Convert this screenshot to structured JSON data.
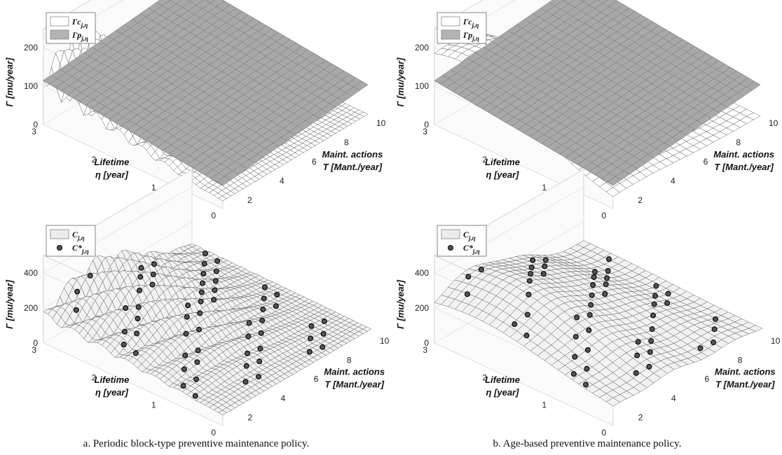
{
  "chart_data": [
    {
      "type": "surface",
      "panel": "a-top",
      "zlabel": "Γ [mu/year]",
      "ylabel_line1": "Lifetime",
      "ylabel_line2": "η [year]",
      "xlabel_line1": "Maint. actions",
      "xlabel_line2": "T  [Mant./year]",
      "zticks": [
        "0",
        "100",
        "200"
      ],
      "yticks": [
        "0",
        "1",
        "2",
        "3"
      ],
      "xticks": [
        "2",
        "4",
        "6",
        "8",
        "10"
      ],
      "zlim": [
        0,
        200
      ],
      "ylim": [
        0,
        3
      ],
      "xlim": [
        1,
        10
      ],
      "legend": [
        {
          "name": "Γc",
          "sub": "j,η",
          "swatch": "#ffffff"
        },
        {
          "name": "Γp",
          "sub": "j,η",
          "swatch": "#b4b4b4"
        }
      ],
      "series": [
        {
          "name": "Γc j,η",
          "shape": "oscillating ridges",
          "peak": 200,
          "peak_at": {
            "T": 3,
            "eta": 2.5
          }
        },
        {
          "name": "Γp j,η",
          "shape": "plane",
          "level_at_eta3_T10": 145,
          "level_at_eta0_T1": 60
        }
      ]
    },
    {
      "type": "surface",
      "panel": "b-top",
      "zlabel": "Γ [mu/year]",
      "ylabel_line1": "Lifetime",
      "ylabel_line2": "η [year]",
      "xlabel_line1": "Maint. actions",
      "xlabel_line2": "T  [Mant./year]",
      "zticks": [
        "0",
        "100",
        "200"
      ],
      "yticks": [
        "0",
        "1",
        "2",
        "3"
      ],
      "xticks": [
        "2",
        "4",
        "6",
        "8",
        "10"
      ],
      "zlim": [
        0,
        200
      ],
      "ylim": [
        0,
        3
      ],
      "xlim": [
        1,
        10
      ],
      "legend": [
        {
          "name": "Γc",
          "sub": "j,η",
          "swatch": "#ffffff"
        },
        {
          "name": "Γp",
          "sub": "j,η",
          "swatch": "#b4b4b4"
        }
      ],
      "series": [
        {
          "name": "Γc j,η",
          "shape": "smooth hill",
          "peak": 200,
          "peak_at": {
            "T": 2.5,
            "eta": 2.8
          }
        },
        {
          "name": "Γp j,η",
          "shape": "plane",
          "level_at_eta3_T10": 145,
          "level_at_eta0_T1": 60
        }
      ]
    },
    {
      "type": "surface",
      "panel": "a-bottom",
      "zlabel": "Γ [mu/year]",
      "ylabel_line1": "Lifetime",
      "ylabel_line2": "η  [year]",
      "xlabel_line1": "Maint. actions",
      "xlabel_line2": "T [Mant./year]",
      "zticks": [
        "0",
        "200",
        "400"
      ],
      "yticks": [
        "0",
        "1",
        "2",
        "3"
      ],
      "xticks": [
        "2",
        "4",
        "6",
        "8",
        "10"
      ],
      "zlim": [
        0,
        400
      ],
      "ylim": [
        0,
        3
      ],
      "xlim": [
        1,
        10
      ],
      "legend": [
        {
          "name": "C",
          "sub": "j,η",
          "swatch": "#ececec",
          "marker": false
        },
        {
          "name": "C*",
          "sub": "j,η",
          "marker": true
        }
      ],
      "series": [
        {
          "name": "C j,η",
          "shape": "oscillating ridges",
          "peak": 400
        },
        {
          "name": "C* j,η",
          "shape": "optimum markers",
          "count": 60
        }
      ]
    },
    {
      "type": "surface",
      "panel": "b-bottom",
      "zlabel": "Γ [mu/year]",
      "ylabel_line1": "Lifetime",
      "ylabel_line2": "η  [year]",
      "xlabel_line1": "Maint. actions",
      "xlabel_line2": "T [Mant./year]",
      "zticks": [
        "0",
        "200",
        "400"
      ],
      "yticks": [
        "0",
        "1",
        "2",
        "3"
      ],
      "xticks": [
        "2",
        "4",
        "6",
        "8",
        "10"
      ],
      "zlim": [
        0,
        400
      ],
      "ylim": [
        0,
        3
      ],
      "xlim": [
        1,
        10
      ],
      "legend": [
        {
          "name": "C",
          "sub": "j,η",
          "swatch": "#ececec",
          "marker": false
        },
        {
          "name": "C*",
          "sub": "j,η",
          "marker": true
        }
      ],
      "series": [
        {
          "name": "C j,η",
          "shape": "smooth hill",
          "peak": 400
        },
        {
          "name": "C* j,η",
          "shape": "optimum markers",
          "count": 50
        }
      ]
    }
  ],
  "captions": {
    "a": "a. Periodic block-type preventive maintenance policy.",
    "b": "b. Age-based preventive maintenance policy."
  }
}
